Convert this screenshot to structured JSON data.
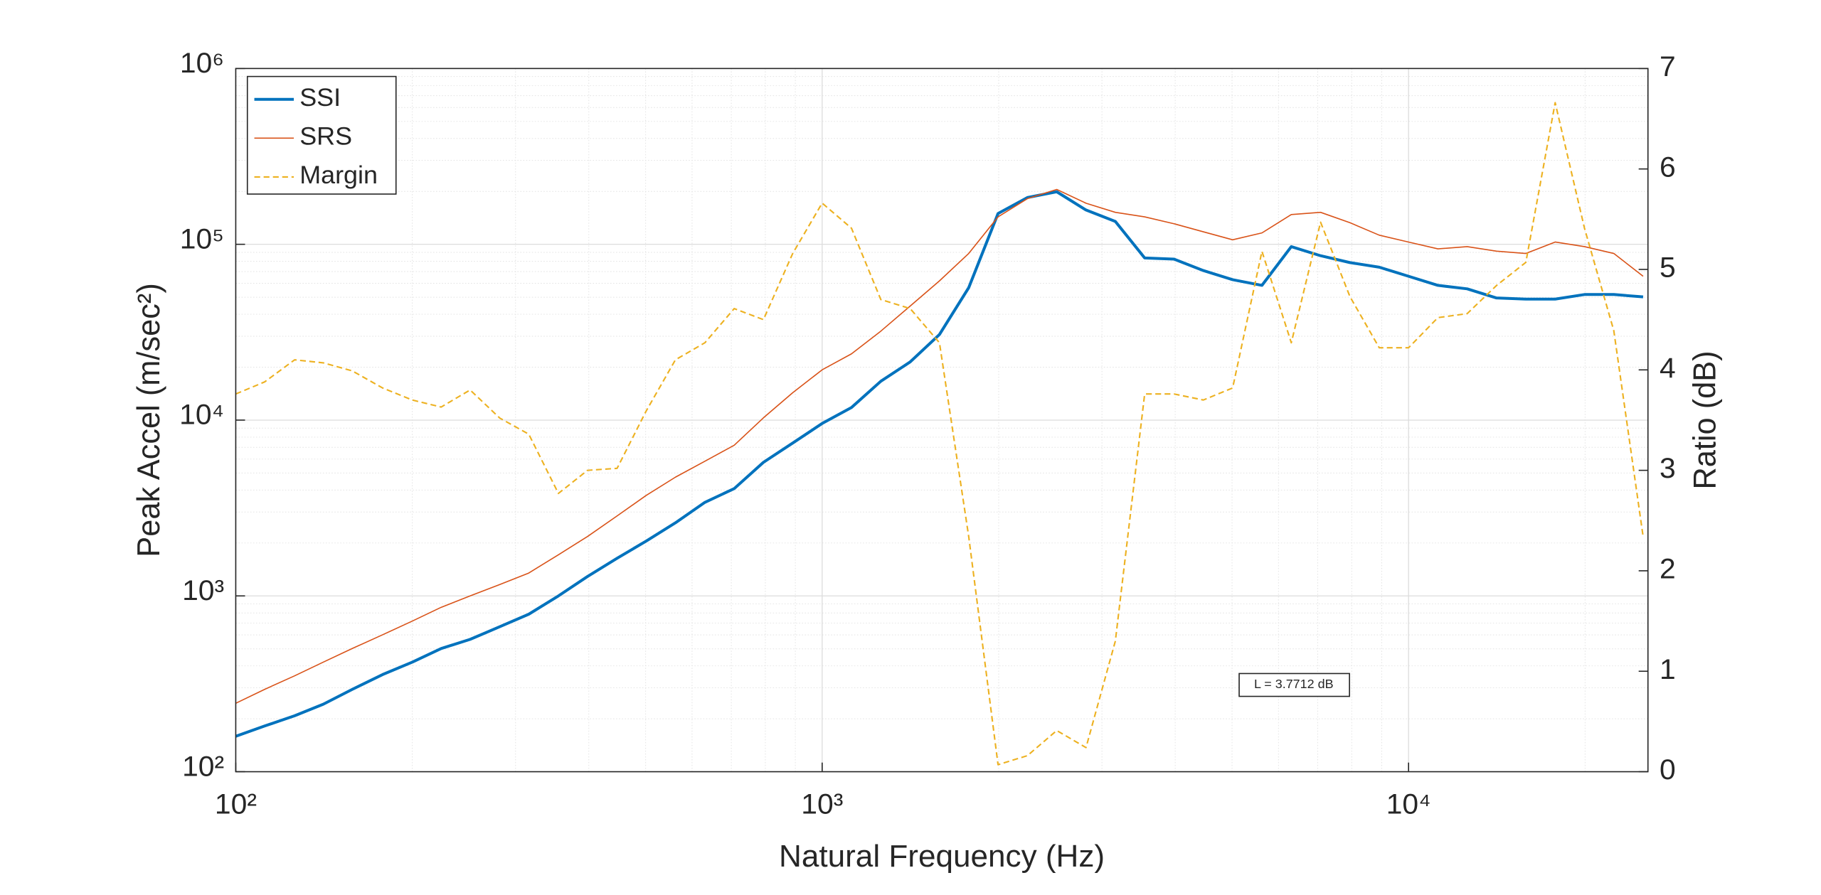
{
  "chart_data": {
    "type": "line",
    "x_label": "Natural Frequency (Hz)",
    "y_label": "Peak Accel (m/sec²)",
    "y2_label": "Ratio (dB)",
    "annotation": "L = 3.7712 dB",
    "x_scale": "log",
    "y_scale": "log",
    "grid": true,
    "legend": "upper left",
    "xlim": [
      100,
      25600
    ],
    "ylim": [
      100,
      1000000
    ],
    "y2lim": [
      0,
      7
    ],
    "xticks": [
      {
        "value": 100,
        "label": "10²"
      },
      {
        "value": 1000,
        "label": "10³"
      },
      {
        "value": 10000,
        "label": "10⁴"
      }
    ],
    "yticks": [
      {
        "value": 100,
        "label": "10²"
      },
      {
        "value": 1000,
        "label": "10³"
      },
      {
        "value": 10000,
        "label": "10⁴"
      },
      {
        "value": 100000,
        "label": "10⁵"
      },
      {
        "value": 1000000,
        "label": "10⁶"
      }
    ],
    "y2ticks": [
      0,
      1,
      2,
      3,
      4,
      5,
      6,
      7
    ],
    "x": [
      100,
      112,
      126,
      141,
      158,
      178,
      200,
      224,
      251,
      282,
      316,
      355,
      398,
      447,
      501,
      562,
      631,
      708,
      794,
      891,
      1000,
      1122,
      1259,
      1413,
      1585,
      1778,
      1995,
      2239,
      2512,
      2818,
      3162,
      3548,
      3981,
      4467,
      5012,
      5623,
      6310,
      7079,
      7943,
      8913,
      10000,
      11220,
      12589,
      14125,
      15849,
      17783,
      19953,
      22387,
      25119
    ],
    "series": [
      {
        "name": "SSI",
        "color": "#0072bd",
        "values": [
          159,
          182,
          208,
          242,
          294,
          357,
          420,
          502,
          566,
          668,
          787,
          1000,
          1290,
          1637,
          2050,
          2604,
          3406,
          4077,
          5750,
          7410,
          9570,
          11790,
          16630,
          21430,
          30690,
          56650,
          149600,
          184500,
          199000,
          156700,
          134900,
          83600,
          82400,
          70900,
          62900,
          58400,
          97000,
          86100,
          78700,
          74100,
          65800,
          58400,
          55800,
          49500,
          48800,
          48800,
          51800,
          51800,
          50200
        ]
      },
      {
        "name": "SRS",
        "color": "#d95319",
        "values": [
          245,
          294,
          351,
          420,
          502,
          601,
          719,
          861,
          1000,
          1161,
          1349,
          1714,
          2178,
          2851,
          3727,
          4735,
          5837,
          7195,
          10300,
          14320,
          19320,
          23820,
          32060,
          44560,
          61940,
          88700,
          143200,
          181900,
          205100,
          171300,
          152000,
          143200,
          130900,
          117800,
          106100,
          116100,
          147600,
          152000,
          132700,
          112700,
          103000,
          94200,
          97000,
          91400,
          88700,
          103000,
          97000,
          88700,
          65800
        ]
      },
      {
        "name": "Margin",
        "color": "#edb120",
        "axis": "y2",
        "values": [
          3.76,
          3.88,
          4.1,
          4.07,
          3.99,
          3.82,
          3.7,
          3.63,
          3.8,
          3.52,
          3.36,
          2.77,
          3.0,
          3.02,
          3.59,
          4.1,
          4.27,
          4.61,
          4.5,
          5.16,
          5.66,
          5.41,
          4.7,
          4.61,
          4.27,
          2.34,
          0.07,
          0.16,
          0.41,
          0.24,
          1.3,
          3.76,
          3.76,
          3.7,
          3.82,
          5.18,
          4.27,
          5.47,
          4.73,
          4.22,
          4.22,
          4.52,
          4.56,
          4.84,
          5.07,
          6.66,
          5.41,
          4.39,
          2.34
        ]
      }
    ]
  }
}
